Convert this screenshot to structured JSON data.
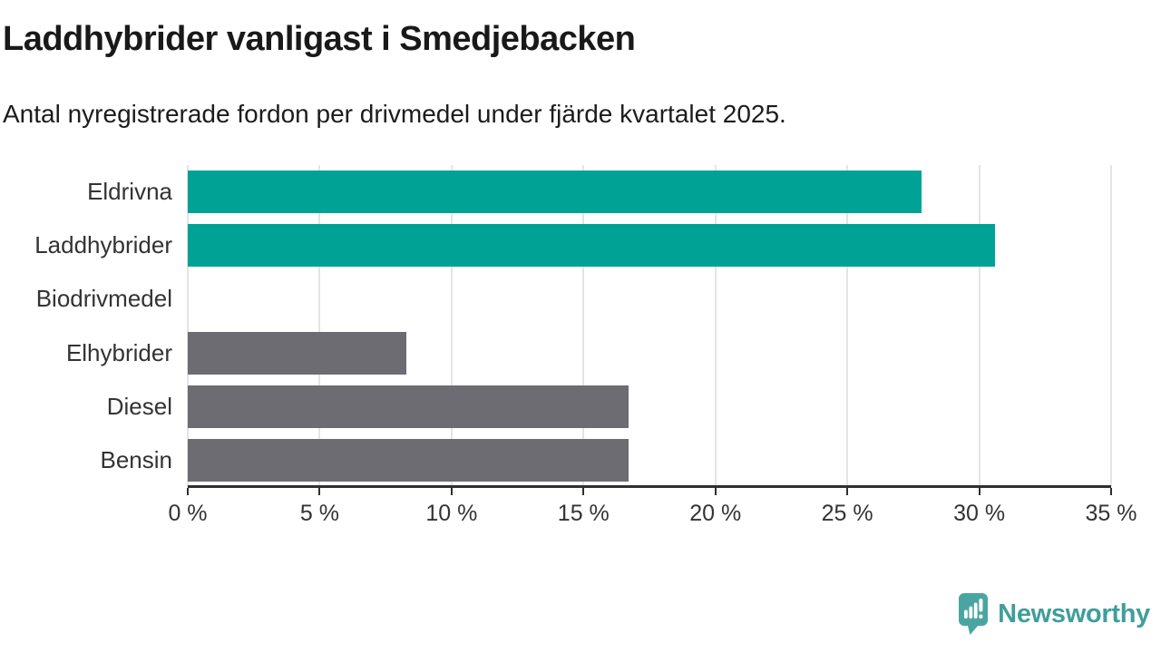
{
  "chart_data": {
    "type": "bar",
    "orientation": "horizontal",
    "title": "Laddhybrider vanligast i Smedjebacken",
    "subtitle": "Antal nyregistrerade fordon per drivmedel under fjärde kvartalet 2025.",
    "categories": [
      "Eldrivna",
      "Laddhybrider",
      "Biodrivmedel",
      "Elhybrider",
      "Diesel",
      "Bensin"
    ],
    "values": [
      27.8,
      30.6,
      0,
      8.3,
      16.7,
      16.7
    ],
    "unit": "%",
    "xlim": [
      0,
      35
    ],
    "x_ticks": [
      0,
      5,
      10,
      15,
      20,
      25,
      30,
      35
    ],
    "x_tick_labels": [
      "0 %",
      "5 %",
      "10 %",
      "15 %",
      "20 %",
      "25 %",
      "30 %",
      "35 %"
    ],
    "bar_colors": [
      "#00a296",
      "#00a296",
      "#00a296",
      "#6c6c72",
      "#6c6c72",
      "#6c6c72"
    ],
    "grid": "vertical-gridlines-on",
    "legend": "none",
    "colors": {
      "teal_bar": "#00a296",
      "gray_bar": "#6c6c72",
      "axis": "#2f2f2f",
      "gridline": "#e4e4e6",
      "text": "#333333"
    }
  },
  "logo": {
    "text": "Newsworthy",
    "icon": "speech-bubble-bar-chart-icon",
    "icon_color": "#4aa5a2",
    "text_color": "#3f9e9b"
  }
}
